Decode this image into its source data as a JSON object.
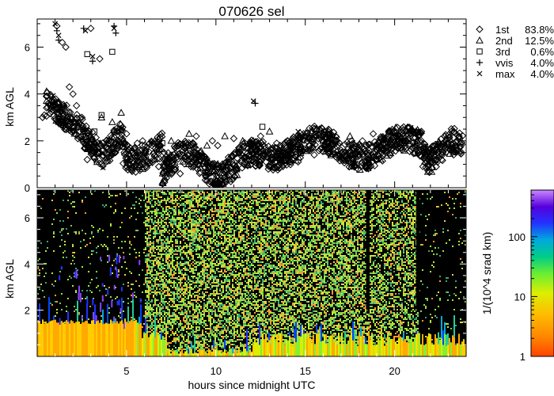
{
  "title": "070626 sel",
  "top_panel": {
    "ylabel": "km AGL",
    "yticks": [
      "0",
      "2",
      "4",
      "6"
    ],
    "legend": [
      {
        "symbol": "diamond",
        "label": "1st",
        "pct": "83.8%"
      },
      {
        "symbol": "triangle",
        "label": "2nd",
        "pct": "12.5%"
      },
      {
        "symbol": "square",
        "label": "3rd",
        "pct": "0.6%"
      },
      {
        "symbol": "plus",
        "label": "vvis",
        "pct": "4.0%"
      },
      {
        "symbol": "cross",
        "label": "max",
        "pct": "4.0%"
      }
    ]
  },
  "bottom_panel": {
    "ylabel": "km AGL",
    "yticks": [
      "2",
      "4",
      "6"
    ],
    "xlabel": "hours since midnight UTC",
    "xticks": [
      "5",
      "10",
      "15",
      "20"
    ]
  },
  "colorbar": {
    "label": "1/(10^4 srad km)",
    "ticks": [
      "1",
      "10",
      "100"
    ]
  },
  "chart_data": [
    {
      "type": "scatter",
      "ylabel": "km AGL",
      "xlim": [
        0,
        24
      ],
      "ylim": [
        0,
        7.2
      ],
      "legend_position": "right",
      "series": [
        {
          "name": "1st",
          "marker": "diamond",
          "x": [
            0.3,
            0.4,
            1.1,
            1.4,
            1.6,
            1.8,
            2.0,
            2.2,
            2.5,
            2.8,
            3.0,
            3.2,
            3.5,
            3.8,
            4.0,
            4.2,
            4.5,
            4.8,
            5.0,
            5.3,
            5.6,
            5.9,
            6.2,
            6.5,
            6.8,
            7.1,
            7.4,
            7.7,
            8.0,
            8.3,
            8.6,
            8.9,
            9.2,
            9.5,
            9.8,
            10.1,
            10.4,
            10.7,
            11.0,
            11.3,
            11.6,
            11.9,
            12.2,
            12.5,
            12.8,
            13.1,
            13.4,
            13.7,
            14.0,
            14.3,
            14.6,
            14.9,
            15.2,
            15.5,
            15.8,
            16.1,
            16.4,
            16.7,
            17.0,
            17.3,
            17.6,
            17.9,
            18.2,
            18.5,
            18.8,
            19.1,
            19.4,
            19.7,
            20.0,
            20.3,
            20.6,
            20.9,
            21.2,
            21.5,
            21.8,
            22.1,
            22.4,
            22.7,
            23.0,
            23.3,
            23.6
          ],
          "y": [
            3.0,
            3.1,
            6.9,
            6.2,
            6.0,
            4.3,
            4.0,
            3.5,
            3.0,
            1.2,
            6.8,
            1.5,
            5.5,
            1.8,
            2.0,
            1.4,
            2.4,
            2.0,
            2.3,
            1.6,
            1.9,
            2.0,
            1.0,
            1.2,
            0.9,
            1.5,
            0.7,
            1.0,
            0.6,
            1.2,
            0.9,
            2.2,
            1.4,
            1.0,
            2.0,
            1.8,
            0.9,
            1.3,
            2.1,
            1.7,
            1.0,
            1.6,
            1.2,
            2.2,
            1.1,
            1.5,
            1.9,
            1.3,
            2.0,
            1.6,
            1.1,
            2.3,
            1.8,
            1.4,
            2.5,
            1.9,
            1.5,
            2.2,
            1.6,
            1.3,
            2.0,
            1.7,
            2.0,
            1.5,
            2.3,
            1.9,
            2.1,
            2.4,
            1.8,
            2.2,
            2.0,
            2.3,
            2.4,
            2.4,
            1.3,
            1.6,
            1.1,
            1.5,
            1.9,
            1.4,
            2.2
          ]
        },
        {
          "name": "2nd",
          "marker": "triangle",
          "x": [
            2.3,
            3.0,
            3.2,
            3.6,
            4.2,
            4.7,
            7.5,
            8.5,
            9.5,
            10.5,
            11.5,
            13.0,
            14.5,
            16.0,
            17.5,
            19.5
          ],
          "y": [
            2.6,
            2.2,
            1.9,
            3.0,
            2.8,
            3.2,
            2.0,
            2.3,
            1.8,
            2.2,
            2.0,
            2.4,
            1.8,
            2.0,
            2.2,
            1.9
          ]
        },
        {
          "name": "3rd",
          "marker": "square",
          "x": [
            2.8,
            3.2,
            3.6,
            4.2,
            7.0,
            12.6
          ],
          "y": [
            5.7,
            2.4,
            3.1,
            5.8,
            1.9,
            2.6
          ]
        },
        {
          "name": "vvis",
          "marker": "plus",
          "x": [
            1.1,
            1.2,
            2.6,
            3.1,
            4.3,
            4.4,
            12.2
          ],
          "y": [
            6.7,
            6.3,
            6.8,
            5.4,
            6.9,
            6.6,
            3.6
          ]
        },
        {
          "name": "max",
          "marker": "cross",
          "x": [
            1.0,
            1.2,
            2.7,
            3.1,
            4.3,
            12.1,
            14.6,
            15.6
          ],
          "y": [
            7.0,
            6.5,
            6.7,
            5.6,
            6.8,
            3.7,
            2.4,
            2.3
          ]
        }
      ]
    },
    {
      "type": "heatmap",
      "xlabel": "hours since midnight UTC",
      "ylabel": "km AGL",
      "xlim": [
        0,
        24
      ],
      "ylim": [
        0,
        7.2
      ],
      "colorbar_label": "1/(10^4 srad km)",
      "colorbar_range": [
        1,
        600
      ],
      "colorbar_scale": "log"
    }
  ]
}
